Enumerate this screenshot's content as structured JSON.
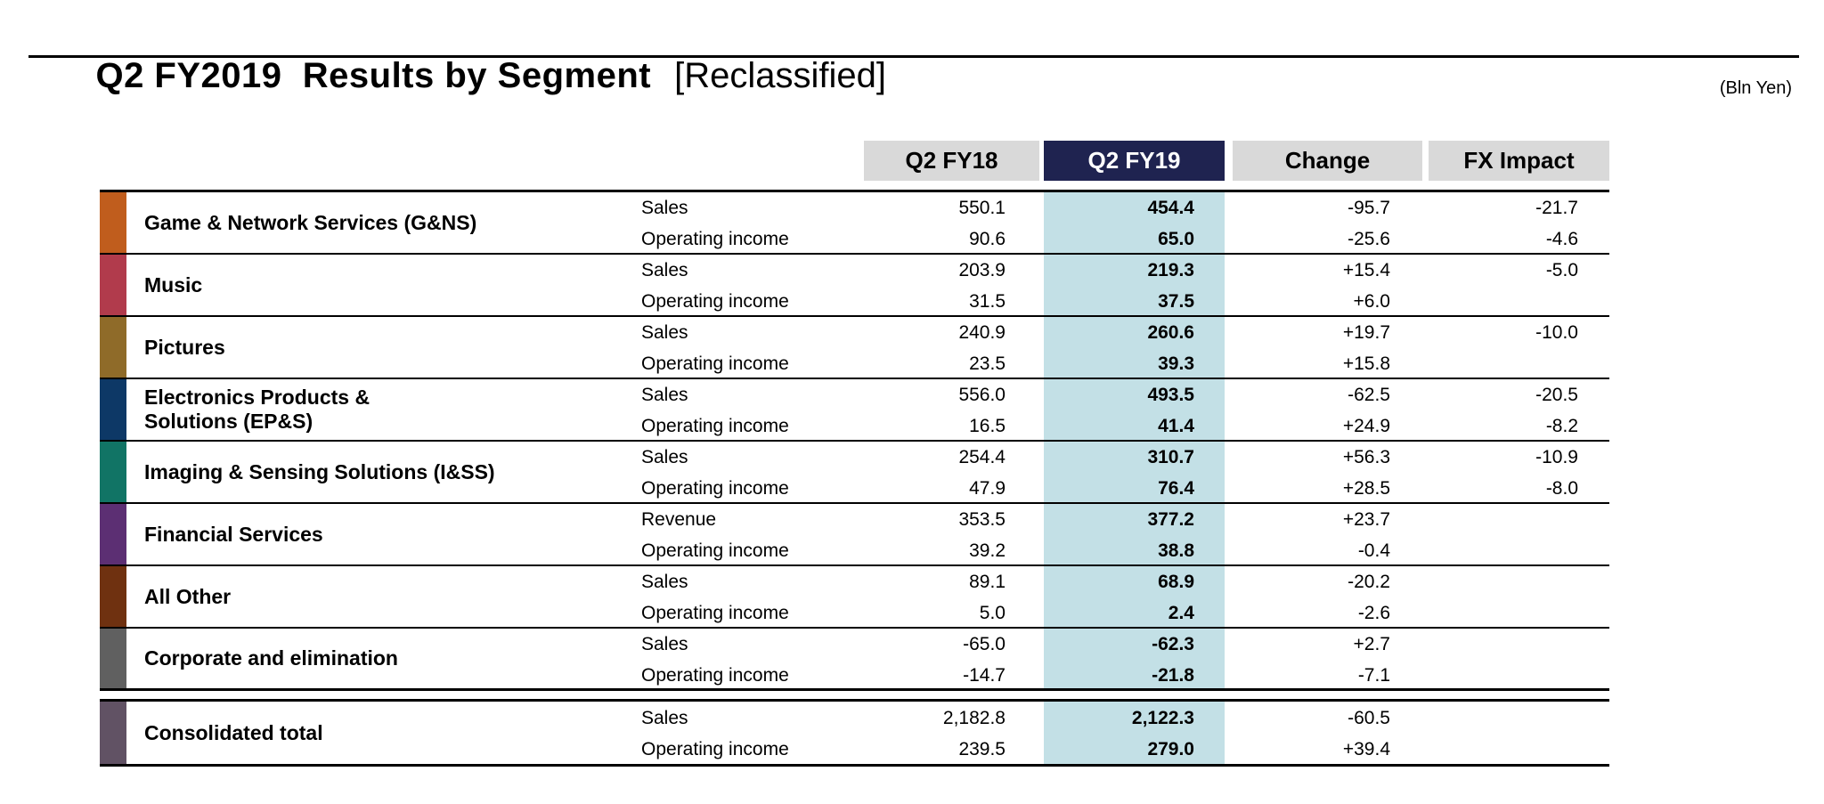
{
  "title": {
    "main": "Q2 FY2019  Results by Segment",
    "tag": "[Reclassified]"
  },
  "unit_note": "(Bln Yen)",
  "header": {
    "col_fy18": "Q2 FY18",
    "col_fy19": "Q2 FY19",
    "col_change": "Change",
    "col_fx": "FX Impact"
  },
  "colors": {
    "highlight_header_bg": "#1f2350",
    "header_bg": "#d9d9d9",
    "highlight_col_bg": "#c3e0e6"
  },
  "segments": [
    {
      "name": "Game & Network Services (G&NS)",
      "color": "#c05d1d",
      "rows": [
        {
          "label": "Sales",
          "fy18": "550.1",
          "fy19": "454.4",
          "change": "-95.7",
          "fx": "-21.7"
        },
        {
          "label": "Operating income",
          "fy18": "90.6",
          "fy19": "65.0",
          "change": "-25.6",
          "fx": "-4.6"
        }
      ]
    },
    {
      "name": "Music",
      "color": "#b13b4c",
      "rows": [
        {
          "label": "Sales",
          "fy18": "203.9",
          "fy19": "219.3",
          "change": "+15.4",
          "fx": "-5.0"
        },
        {
          "label": "Operating income",
          "fy18": "31.5",
          "fy19": "37.5",
          "change": "+6.0",
          "fx": ""
        }
      ]
    },
    {
      "name": "Pictures",
      "color": "#8f6b29",
      "rows": [
        {
          "label": "Sales",
          "fy18": "240.9",
          "fy19": "260.6",
          "change": "+19.7",
          "fx": "-10.0"
        },
        {
          "label": "Operating income",
          "fy18": "23.5",
          "fy19": "39.3",
          "change": "+15.8",
          "fx": ""
        }
      ]
    },
    {
      "name": "Electronics Products &\nSolutions (EP&S)",
      "color": "#0d3866",
      "rows": [
        {
          "label": "Sales",
          "fy18": "556.0",
          "fy19": "493.5",
          "change": "-62.5",
          "fx": "-20.5"
        },
        {
          "label": "Operating income",
          "fy18": "16.5",
          "fy19": "41.4",
          "change": "+24.9",
          "fx": "-8.2"
        }
      ]
    },
    {
      "name": "Imaging & Sensing Solutions (I&SS)",
      "color": "#117465",
      "rows": [
        {
          "label": "Sales",
          "fy18": "254.4",
          "fy19": "310.7",
          "change": "+56.3",
          "fx": "-10.9"
        },
        {
          "label": "Operating income",
          "fy18": "47.9",
          "fy19": "76.4",
          "change": "+28.5",
          "fx": "-8.0"
        }
      ]
    },
    {
      "name": "Financial Services",
      "color": "#5c2f73",
      "rows": [
        {
          "label": "Revenue",
          "fy18": "353.5",
          "fy19": "377.2",
          "change": "+23.7",
          "fx": ""
        },
        {
          "label": "Operating income",
          "fy18": "39.2",
          "fy19": "38.8",
          "change": "-0.4",
          "fx": ""
        }
      ]
    },
    {
      "name": "All Other",
      "color": "#6f3110",
      "rows": [
        {
          "label": "Sales",
          "fy18": "89.1",
          "fy19": "68.9",
          "change": "-20.2",
          "fx": ""
        },
        {
          "label": "Operating income",
          "fy18": "5.0",
          "fy19": "2.4",
          "change": "-2.6",
          "fx": ""
        }
      ]
    },
    {
      "name": "Corporate and elimination",
      "color": "#606060",
      "rows": [
        {
          "label": "Sales",
          "fy18": "-65.0",
          "fy19": "-62.3",
          "change": "+2.7",
          "fx": ""
        },
        {
          "label": "Operating income",
          "fy18": "-14.7",
          "fy19": "-21.8",
          "change": "-7.1",
          "fx": ""
        }
      ]
    }
  ],
  "total": {
    "name": "Consolidated total",
    "color": "#615264",
    "rows": [
      {
        "label": "Sales",
        "fy18": "2,182.8",
        "fy19": "2,122.3",
        "change": "-60.5",
        "fx": ""
      },
      {
        "label": "Operating income",
        "fy18": "239.5",
        "fy19": "279.0",
        "change": "+39.4",
        "fx": ""
      }
    ]
  }
}
